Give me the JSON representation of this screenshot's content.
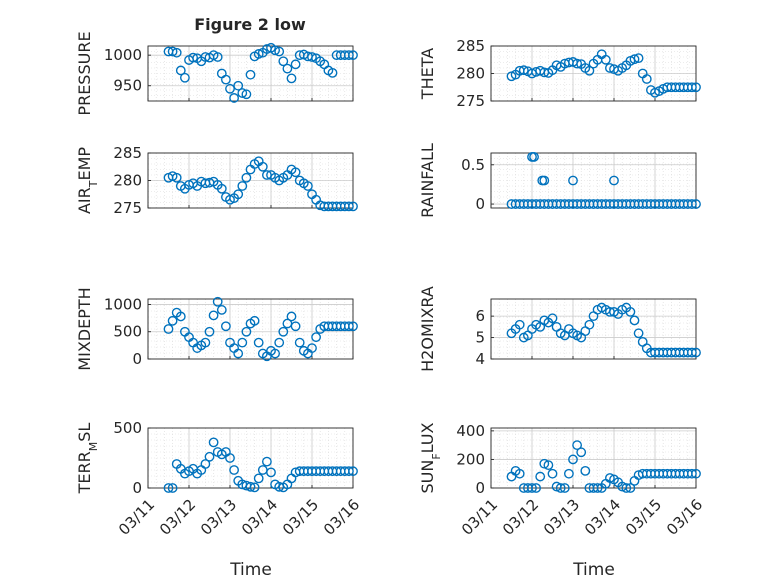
{
  "figure": {
    "title": "Figure 2 low",
    "xlabel": "Time"
  },
  "colors": {
    "marker": "#0072bd",
    "axis": "#262626",
    "grid": "#d9d9d9"
  },
  "x_ticks": [
    "03/11",
    "03/12",
    "03/13",
    "03/14",
    "03/15",
    "03/16"
  ],
  "chart_data": [
    {
      "type": "scatter",
      "title": "Figure 2 low",
      "ylabel": "PRESSURE",
      "ylabel_parts": [
        {
          "t": "PRESSURE",
          "sub": false
        }
      ],
      "xlim": [
        0,
        5
      ],
      "ylim": [
        925,
        1015
      ],
      "yticks": [
        950,
        1000
      ],
      "ytick_labels": [
        "950",
        "1000"
      ],
      "x_dates_start": "03/11",
      "x": [
        0.5,
        0.6,
        0.7,
        0.8,
        0.9,
        1.0,
        1.1,
        1.2,
        1.3,
        1.4,
        1.5,
        1.6,
        1.7,
        1.8,
        1.9,
        2.0,
        2.1,
        2.2,
        2.3,
        2.4,
        2.5,
        2.6,
        2.7,
        2.8,
        2.9,
        3.0,
        3.1,
        3.2,
        3.3,
        3.4,
        3.5,
        3.6,
        3.7,
        3.8,
        3.9,
        4.0,
        4.1,
        4.2,
        4.3,
        4.4,
        4.5,
        4.6,
        4.7,
        4.8,
        4.9,
        5.0
      ],
      "y": [
        1006,
        1006,
        1004,
        975,
        963,
        992,
        996,
        995,
        990,
        997,
        996,
        1000,
        997,
        970,
        960,
        945,
        930,
        950,
        938,
        936,
        968,
        998,
        1002,
        1004,
        1010,
        1012,
        1008,
        1006,
        990,
        978,
        962,
        985,
        1000,
        1001,
        998,
        997,
        995,
        990,
        985,
        975,
        971,
        1000,
        1000,
        1000,
        1000,
        1000
      ]
    },
    {
      "type": "scatter",
      "ylabel": "THETA",
      "ylabel_parts": [
        {
          "t": "THETA",
          "sub": false
        }
      ],
      "ylim": [
        275,
        285
      ],
      "yticks": [
        275,
        280,
        285
      ],
      "ytick_labels": [
        "275",
        "280",
        "285"
      ],
      "x": [
        0.5,
        0.6,
        0.7,
        0.8,
        0.9,
        1.0,
        1.1,
        1.2,
        1.3,
        1.4,
        1.5,
        1.6,
        1.7,
        1.8,
        1.9,
        2.0,
        2.1,
        2.2,
        2.3,
        2.4,
        2.5,
        2.6,
        2.7,
        2.8,
        2.9,
        3.0,
        3.1,
        3.2,
        3.3,
        3.4,
        3.5,
        3.6,
        3.7,
        3.8,
        3.9,
        4.0,
        4.1,
        4.2,
        4.3,
        4.4,
        4.5,
        4.6,
        4.7,
        4.8,
        4.9,
        5.0
      ],
      "y": [
        279.5,
        279.8,
        280.5,
        280.6,
        280.4,
        280.0,
        280.3,
        280.5,
        280.2,
        280.1,
        280.6,
        281.5,
        281.2,
        281.8,
        282.0,
        282.1,
        281.8,
        281.7,
        281.0,
        280.5,
        281.8,
        282.5,
        283.5,
        282.5,
        281.0,
        280.8,
        280.5,
        281.0,
        281.5,
        282.3,
        282.6,
        282.8,
        280.0,
        279.0,
        277.0,
        276.5,
        276.8,
        277.2,
        277.5,
        277.5,
        277.5,
        277.5,
        277.5,
        277.5,
        277.5,
        277.5
      ]
    },
    {
      "type": "scatter",
      "ylabel": "AIR_TEMP",
      "ylabel_parts": [
        {
          "t": "AIR",
          "sub": false
        },
        {
          "t": "T",
          "sub": true
        },
        {
          "t": "EMP",
          "sub": false
        }
      ],
      "ylim": [
        275,
        285
      ],
      "yticks": [
        275,
        280,
        285
      ],
      "ytick_labels": [
        "275",
        "280",
        "285"
      ],
      "x": [
        0.5,
        0.6,
        0.7,
        0.8,
        0.9,
        1.0,
        1.1,
        1.2,
        1.3,
        1.4,
        1.5,
        1.6,
        1.7,
        1.8,
        1.9,
        2.0,
        2.1,
        2.2,
        2.3,
        2.4,
        2.5,
        2.6,
        2.7,
        2.8,
        2.9,
        3.0,
        3.1,
        3.2,
        3.3,
        3.4,
        3.5,
        3.6,
        3.7,
        3.8,
        3.9,
        4.0,
        4.1,
        4.2,
        4.3,
        4.4,
        4.5,
        4.6,
        4.7,
        4.8,
        4.9,
        5.0
      ],
      "y": [
        280.5,
        280.8,
        280.5,
        279.0,
        278.5,
        279.2,
        279.5,
        279.0,
        279.8,
        279.5,
        279.6,
        279.8,
        279.2,
        278.5,
        277.0,
        276.5,
        276.8,
        277.5,
        279.0,
        280.5,
        282.0,
        283.0,
        283.5,
        282.5,
        281.0,
        281.0,
        280.5,
        280.0,
        280.5,
        281.0,
        282.0,
        281.5,
        280.0,
        279.5,
        279.0,
        277.5,
        276.5,
        275.5,
        275.3,
        275.3,
        275.3,
        275.3,
        275.3,
        275.3,
        275.3,
        275.3
      ]
    },
    {
      "type": "scatter",
      "ylabel": "RAINFALL",
      "ylabel_parts": [
        {
          "t": "RAINFALL",
          "sub": false
        }
      ],
      "ylim": [
        -0.05,
        0.65
      ],
      "yticks": [
        0,
        0.5
      ],
      "ytick_labels": [
        "0",
        "0.5"
      ],
      "x": [
        0.5,
        0.6,
        0.7,
        0.8,
        0.9,
        1.0,
        1.1,
        1.2,
        1.3,
        1.4,
        1.5,
        1.6,
        1.7,
        1.8,
        1.9,
        2.0,
        2.1,
        2.2,
        2.3,
        2.4,
        2.5,
        2.6,
        2.7,
        2.8,
        2.9,
        3.0,
        3.1,
        3.2,
        3.3,
        3.4,
        3.5,
        3.6,
        3.7,
        3.8,
        3.9,
        4.0,
        4.1,
        4.2,
        4.3,
        4.4,
        4.5,
        4.6,
        4.7,
        4.8,
        4.9,
        5.0,
        1.0,
        1.05,
        1.25,
        1.3,
        2.0,
        3.0
      ],
      "y": [
        0,
        0,
        0,
        0,
        0,
        0,
        0,
        0,
        0,
        0,
        0,
        0,
        0,
        0,
        0,
        0,
        0,
        0,
        0,
        0,
        0,
        0,
        0,
        0,
        0,
        0,
        0,
        0,
        0,
        0,
        0,
        0,
        0,
        0,
        0,
        0,
        0,
        0,
        0,
        0,
        0,
        0,
        0,
        0,
        0,
        0,
        0.6,
        0.6,
        0.3,
        0.3,
        0.3,
        0.3
      ]
    },
    {
      "type": "scatter",
      "ylabel": "MIXDEPTH",
      "ylabel_parts": [
        {
          "t": "MIXDEPTH",
          "sub": false
        }
      ],
      "ylim": [
        0,
        1100
      ],
      "yticks": [
        0,
        500,
        1000
      ],
      "ytick_labels": [
        "0",
        "500",
        "1000"
      ],
      "x": [
        0.5,
        0.6,
        0.7,
        0.8,
        0.9,
        1.0,
        1.1,
        1.2,
        1.3,
        1.4,
        1.5,
        1.6,
        1.7,
        1.8,
        1.9,
        2.0,
        2.1,
        2.2,
        2.3,
        2.4,
        2.5,
        2.6,
        2.7,
        2.8,
        2.9,
        3.0,
        3.1,
        3.2,
        3.3,
        3.4,
        3.5,
        3.6,
        3.7,
        3.8,
        3.9,
        4.0,
        4.1,
        4.2,
        4.3,
        4.4,
        4.5,
        4.6,
        4.7,
        4.8,
        4.9,
        5.0
      ],
      "y": [
        550,
        700,
        850,
        780,
        500,
        400,
        300,
        200,
        250,
        300,
        500,
        800,
        1050,
        900,
        600,
        300,
        200,
        100,
        300,
        500,
        650,
        700,
        300,
        100,
        50,
        150,
        100,
        300,
        500,
        650,
        780,
        600,
        300,
        150,
        100,
        200,
        400,
        550,
        600,
        600,
        600,
        600,
        600,
        600,
        600,
        600
      ]
    },
    {
      "type": "scatter",
      "ylabel": "H2OMIXRA",
      "ylabel_parts": [
        {
          "t": "H2OMIXRA",
          "sub": false
        }
      ],
      "ylim": [
        4,
        6.8
      ],
      "yticks": [
        4,
        5,
        6
      ],
      "ytick_labels": [
        "4",
        "5",
        "6"
      ],
      "x": [
        0.5,
        0.6,
        0.7,
        0.8,
        0.9,
        1.0,
        1.1,
        1.2,
        1.3,
        1.4,
        1.5,
        1.6,
        1.7,
        1.8,
        1.9,
        2.0,
        2.1,
        2.2,
        2.3,
        2.4,
        2.5,
        2.6,
        2.7,
        2.8,
        2.9,
        3.0,
        3.1,
        3.2,
        3.3,
        3.4,
        3.5,
        3.6,
        3.7,
        3.8,
        3.9,
        4.0,
        4.1,
        4.2,
        4.3,
        4.4,
        4.5,
        4.6,
        4.7,
        4.8,
        4.9,
        5.0
      ],
      "y": [
        5.2,
        5.4,
        5.6,
        5.0,
        5.1,
        5.4,
        5.6,
        5.5,
        5.8,
        5.7,
        5.9,
        5.5,
        5.2,
        5.1,
        5.4,
        5.2,
        5.1,
        5.0,
        5.3,
        5.6,
        6.0,
        6.3,
        6.4,
        6.3,
        6.2,
        6.2,
        6.1,
        6.3,
        6.4,
        6.2,
        5.8,
        5.2,
        4.8,
        4.5,
        4.3,
        4.3,
        4.3,
        4.3,
        4.3,
        4.3,
        4.3,
        4.3,
        4.3,
        4.3,
        4.3,
        4.3
      ]
    },
    {
      "type": "scatter",
      "ylabel": "TERR_MSL",
      "ylabel_parts": [
        {
          "t": "TERR",
          "sub": false
        },
        {
          "t": "M",
          "sub": true
        },
        {
          "t": "SL",
          "sub": false
        }
      ],
      "ylim": [
        0,
        500
      ],
      "yticks": [
        0,
        500
      ],
      "ytick_labels": [
        "0",
        "500"
      ],
      "x": [
        0.5,
        0.6,
        0.7,
        0.8,
        0.9,
        1.0,
        1.1,
        1.2,
        1.3,
        1.4,
        1.5,
        1.6,
        1.7,
        1.8,
        1.9,
        2.0,
        2.1,
        2.2,
        2.3,
        2.4,
        2.5,
        2.6,
        2.7,
        2.8,
        2.9,
        3.0,
        3.1,
        3.2,
        3.3,
        3.4,
        3.5,
        3.6,
        3.7,
        3.8,
        3.9,
        4.0,
        4.1,
        4.2,
        4.3,
        4.4,
        4.5,
        4.6,
        4.7,
        4.8,
        4.9,
        5.0
      ],
      "y": [
        0,
        0,
        200,
        160,
        120,
        140,
        160,
        120,
        150,
        200,
        260,
        380,
        300,
        280,
        300,
        250,
        150,
        60,
        30,
        20,
        10,
        5,
        80,
        150,
        220,
        130,
        30,
        10,
        5,
        30,
        80,
        130,
        140,
        140,
        140,
        140,
        140,
        140,
        140,
        140,
        140,
        140,
        140,
        140,
        140,
        140
      ]
    },
    {
      "type": "scatter",
      "ylabel": "SUN_FLUX",
      "ylabel_parts": [
        {
          "t": "SUN",
          "sub": false
        },
        {
          "t": "F",
          "sub": true
        },
        {
          "t": "LUX",
          "sub": false
        }
      ],
      "ylim": [
        0,
        420
      ],
      "yticks": [
        0,
        200,
        400
      ],
      "ytick_labels": [
        "0",
        "200",
        "400"
      ],
      "x": [
        0.5,
        0.6,
        0.7,
        0.8,
        0.9,
        1.0,
        1.1,
        1.2,
        1.3,
        1.4,
        1.5,
        1.6,
        1.7,
        1.8,
        1.9,
        2.0,
        2.1,
        2.2,
        2.3,
        2.4,
        2.5,
        2.6,
        2.7,
        2.8,
        2.9,
        3.0,
        3.1,
        3.2,
        3.3,
        3.4,
        3.5,
        3.6,
        3.7,
        3.8,
        3.9,
        4.0,
        4.1,
        4.2,
        4.3,
        4.4,
        4.5,
        4.6,
        4.7,
        4.8,
        4.9,
        5.0
      ],
      "y": [
        80,
        120,
        100,
        0,
        0,
        0,
        0,
        80,
        170,
        160,
        100,
        10,
        0,
        0,
        100,
        200,
        300,
        250,
        120,
        0,
        0,
        0,
        0,
        30,
        70,
        60,
        40,
        10,
        0,
        0,
        50,
        90,
        100,
        100,
        100,
        100,
        100,
        100,
        100,
        100,
        100,
        100,
        100,
        100,
        100,
        100
      ]
    }
  ]
}
